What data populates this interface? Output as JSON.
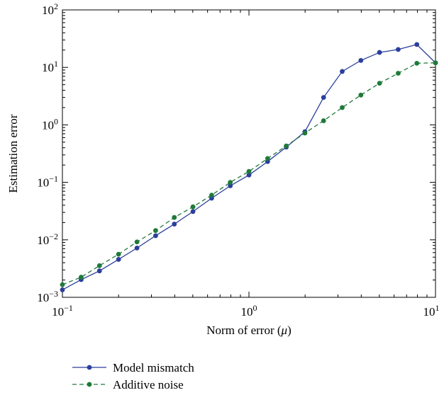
{
  "chart_data": {
    "type": "line",
    "title": "",
    "xlabel": "Norm of error (",
    "xlabel_symbol": "μ",
    "xlabel_close": ")",
    "ylabel": "Estimation error",
    "xscale": "log",
    "yscale": "log",
    "xlim": [
      0.1,
      10
    ],
    "ylim": [
      0.001,
      100
    ],
    "grid": false,
    "legend_position": "bottom-left-below",
    "x_ticks": [
      {
        "value": 0.1,
        "base": "10",
        "exp": "−1"
      },
      {
        "value": 1,
        "base": "10",
        "exp": "0"
      },
      {
        "value": 10,
        "base": "10",
        "exp": "1"
      }
    ],
    "y_ticks": [
      {
        "value": 0.001,
        "base": "10",
        "exp": "−3"
      },
      {
        "value": 0.01,
        "base": "10",
        "exp": "−2"
      },
      {
        "value": 0.1,
        "base": "10",
        "exp": "−1"
      },
      {
        "value": 1,
        "base": "10",
        "exp": "0"
      },
      {
        "value": 10,
        "base": "10",
        "exp": "1"
      },
      {
        "value": 100,
        "base": "10",
        "exp": "2"
      }
    ],
    "series": [
      {
        "name": "Model mismatch",
        "color": "#2b3f9c",
        "dash": "solid",
        "x": [
          0.1,
          0.126,
          0.158,
          0.2,
          0.251,
          0.316,
          0.398,
          0.501,
          0.631,
          0.794,
          1.0,
          1.259,
          1.585,
          1.995,
          2.512,
          3.162,
          3.981,
          5.012,
          6.31,
          7.943,
          10.0
        ],
        "y": [
          0.00135,
          0.00203,
          0.00288,
          0.00457,
          0.0072,
          0.0118,
          0.0188,
          0.031,
          0.053,
          0.087,
          0.134,
          0.23,
          0.41,
          0.76,
          3.0,
          8.5,
          13.2,
          18.2,
          20.5,
          25.0,
          12.0
        ]
      },
      {
        "name": "Additive noise",
        "color": "#1f7a3a",
        "dash": "dashed",
        "x": [
          0.1,
          0.126,
          0.158,
          0.2,
          0.251,
          0.316,
          0.398,
          0.501,
          0.631,
          0.794,
          1.0,
          1.259,
          1.585,
          1.995,
          2.512,
          3.162,
          3.981,
          5.012,
          6.31,
          7.943,
          10.0
        ],
        "y": [
          0.00166,
          0.00224,
          0.00355,
          0.00562,
          0.0092,
          0.0145,
          0.0245,
          0.0375,
          0.06,
          0.1,
          0.155,
          0.26,
          0.43,
          0.72,
          1.18,
          2.0,
          3.3,
          5.3,
          7.9,
          11.8,
          12.0
        ]
      }
    ]
  }
}
